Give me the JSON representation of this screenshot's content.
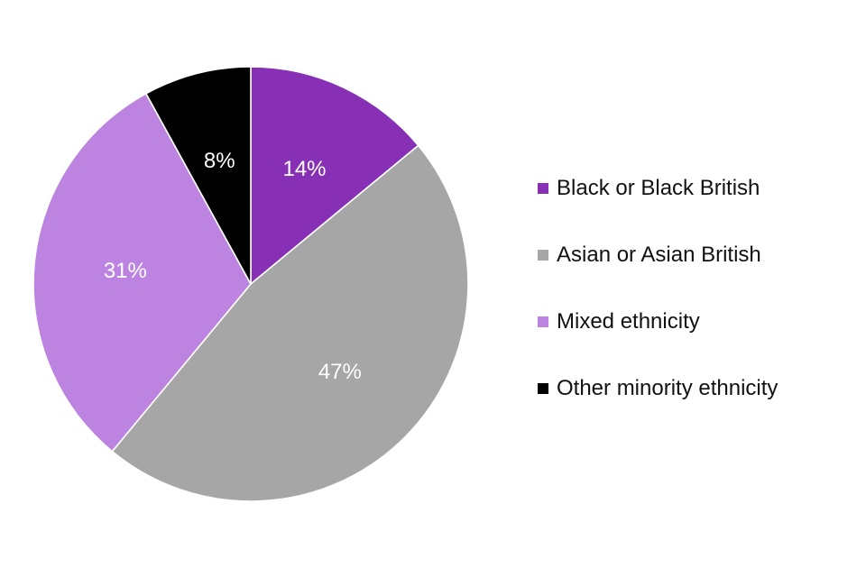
{
  "chart_data": {
    "type": "pie",
    "title": "",
    "slices": [
      {
        "label": "Black or Black British",
        "value": 14,
        "display": "14%",
        "color": "#8730B5"
      },
      {
        "label": "Asian or Asian British",
        "value": 47,
        "display": "47%",
        "color": "#A6A6A6"
      },
      {
        "label": "Mixed ethnicity",
        "value": 31,
        "display": "31%",
        "color": "#BD83E0"
      },
      {
        "label": "Other minority ethnicity",
        "value": 8,
        "display": "8%",
        "color": "#000000"
      }
    ],
    "start_angle": "12 o'clock",
    "direction": "clockwise",
    "legend_position": "right"
  },
  "legend": {
    "items": [
      {
        "label": "Black or Black British",
        "color": "#8730B5"
      },
      {
        "label": "Asian or Asian British",
        "color": "#A6A6A6"
      },
      {
        "label": "Mixed ethnicity",
        "color": "#BD83E0"
      },
      {
        "label": "Other minority ethnicity",
        "color": "#000000"
      }
    ]
  }
}
